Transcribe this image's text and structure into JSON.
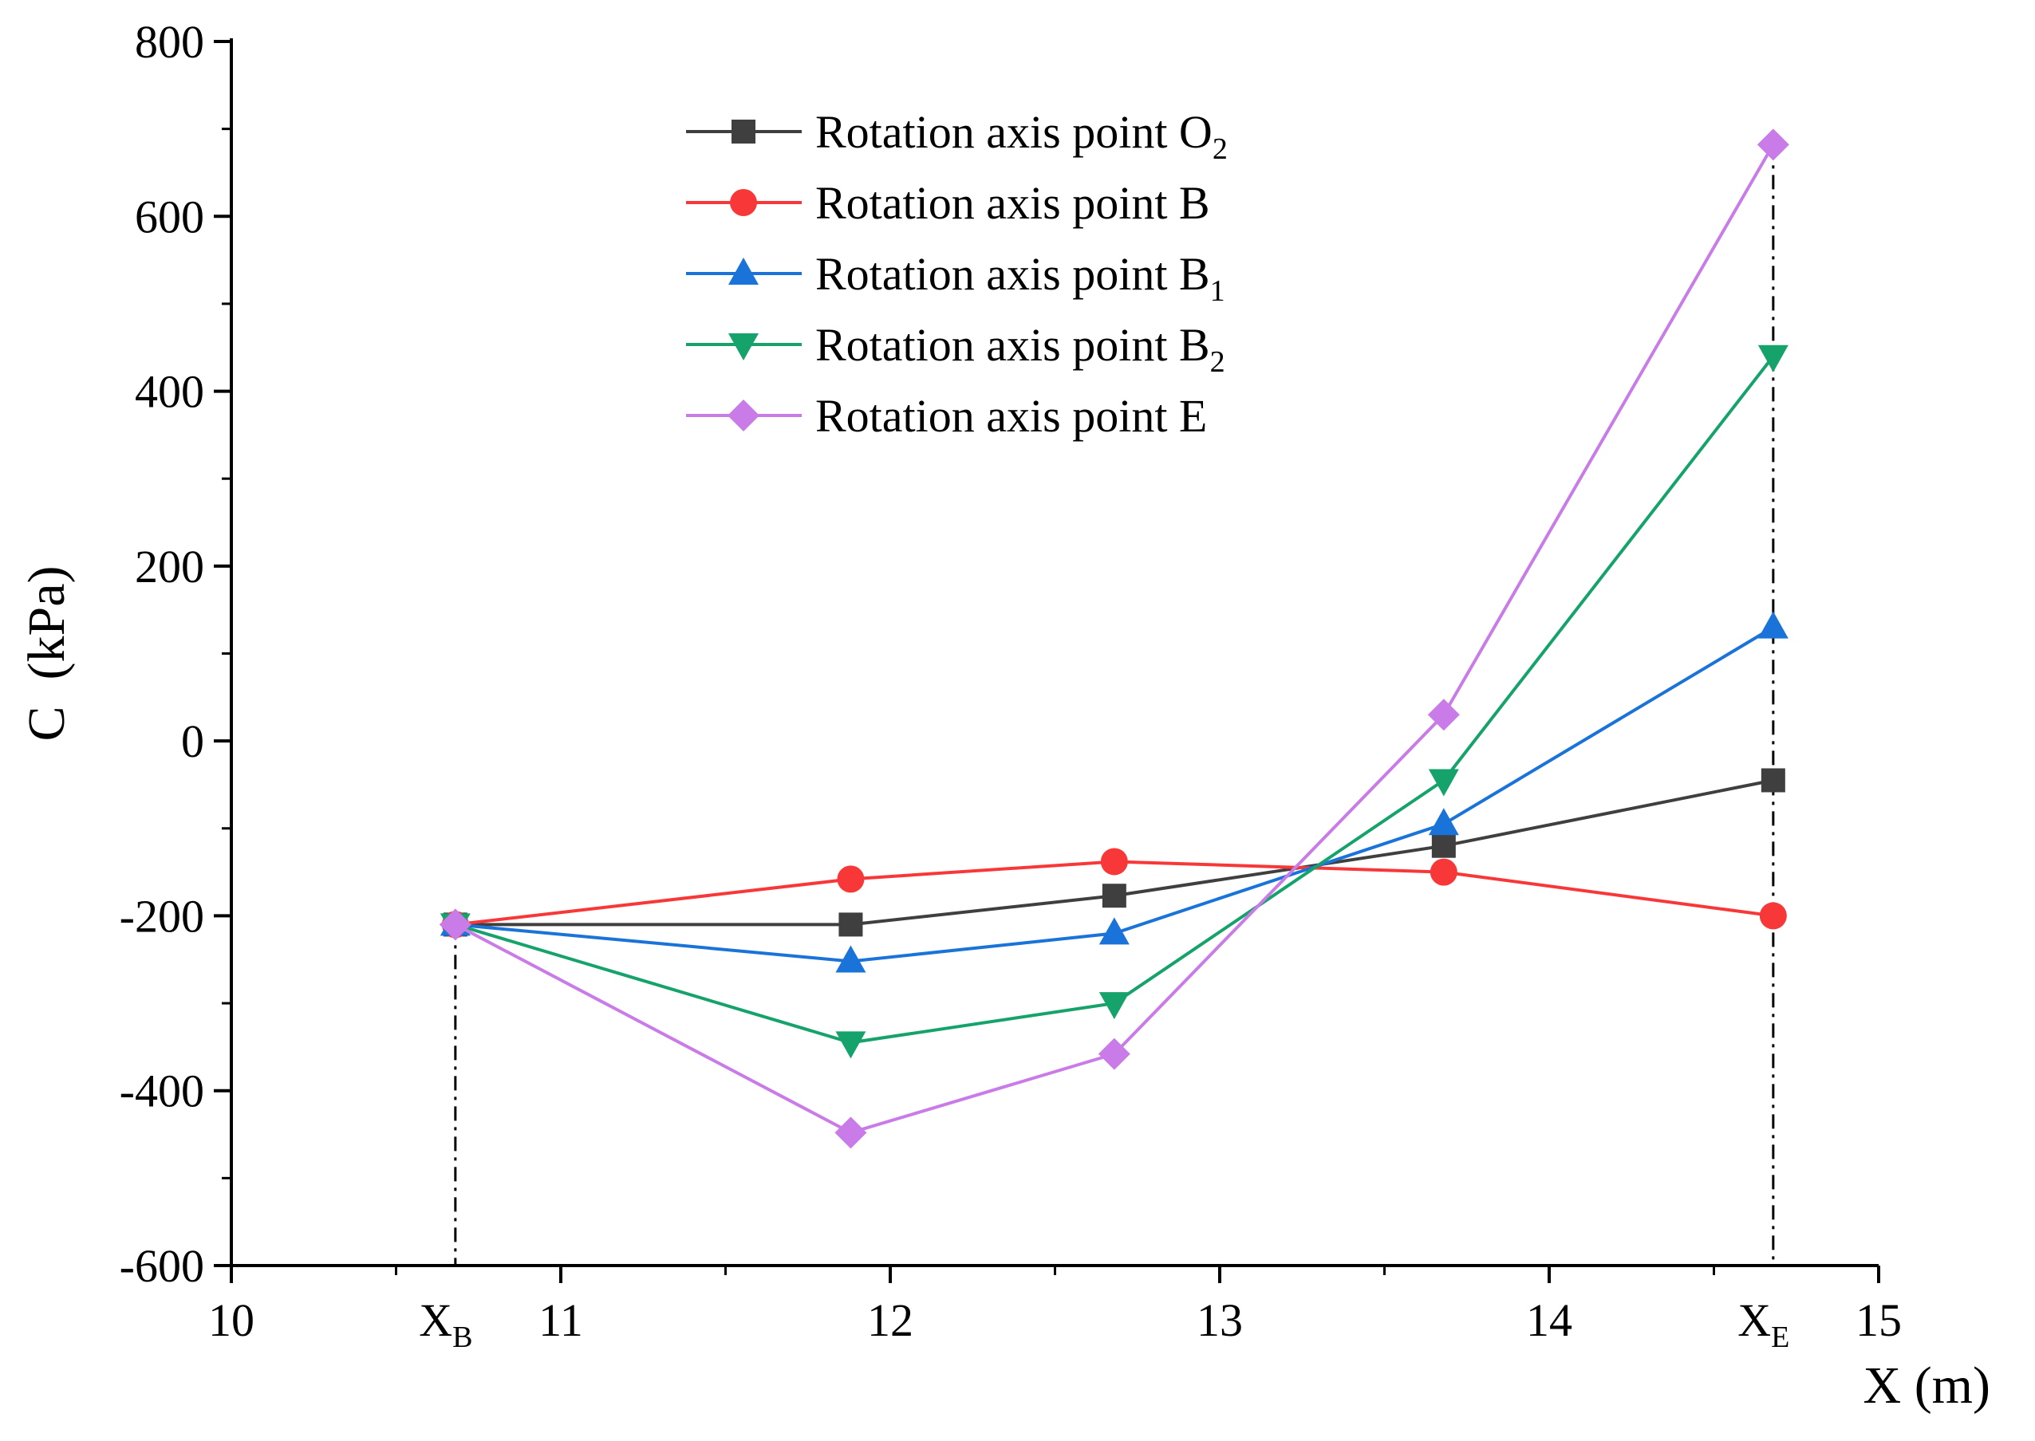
{
  "chart_data": {
    "type": "line",
    "title": "",
    "xlabel": "X (m)",
    "ylabel": "C  (kPa)",
    "xlim": [
      10,
      15
    ],
    "ylim": [
      -600,
      800
    ],
    "xticks": [
      10,
      11,
      12,
      13,
      14,
      15
    ],
    "yticks": [
      -600,
      -400,
      -200,
      0,
      200,
      400,
      600,
      800
    ],
    "xtick_labels": [
      "10",
      "11",
      "12",
      "13",
      "14",
      "15"
    ],
    "ytick_labels": [
      "-600",
      "-400",
      "-200",
      "0",
      "200",
      "400",
      "600",
      "800"
    ],
    "x": [
      10.68,
      11.88,
      12.68,
      13.68,
      14.68
    ],
    "reference_lines": [
      {
        "x": 10.68,
        "label": "X",
        "label_sub": "B"
      },
      {
        "x": 14.68,
        "label": "X",
        "label_sub": "E"
      }
    ],
    "series": [
      {
        "name": "Rotation axis point O",
        "name_sub": "2",
        "color": "#3f3f3f",
        "marker": "square",
        "values": [
          -210,
          -210,
          -177,
          -120,
          -45
        ]
      },
      {
        "name": "Rotation axis point B",
        "name_sub": "",
        "color": "#f83838",
        "marker": "circle",
        "values": [
          -210,
          -158,
          -138,
          -150,
          -200
        ]
      },
      {
        "name": "Rotation axis point B",
        "name_sub": "1",
        "color": "#1a73d9",
        "marker": "triangle-up",
        "values": [
          -210,
          -252,
          -220,
          -95,
          130
        ]
      },
      {
        "name": "Rotation axis point B",
        "name_sub": "2",
        "color": "#16a36b",
        "marker": "triangle-down",
        "values": [
          -210,
          -345,
          -300,
          -45,
          440
        ]
      },
      {
        "name": "Rotation axis point E",
        "name_sub": "",
        "color": "#c97be8",
        "marker": "diamond",
        "values": [
          -210,
          -448,
          -358,
          30,
          682
        ]
      }
    ],
    "legend_position": "top-center",
    "grid": false
  }
}
